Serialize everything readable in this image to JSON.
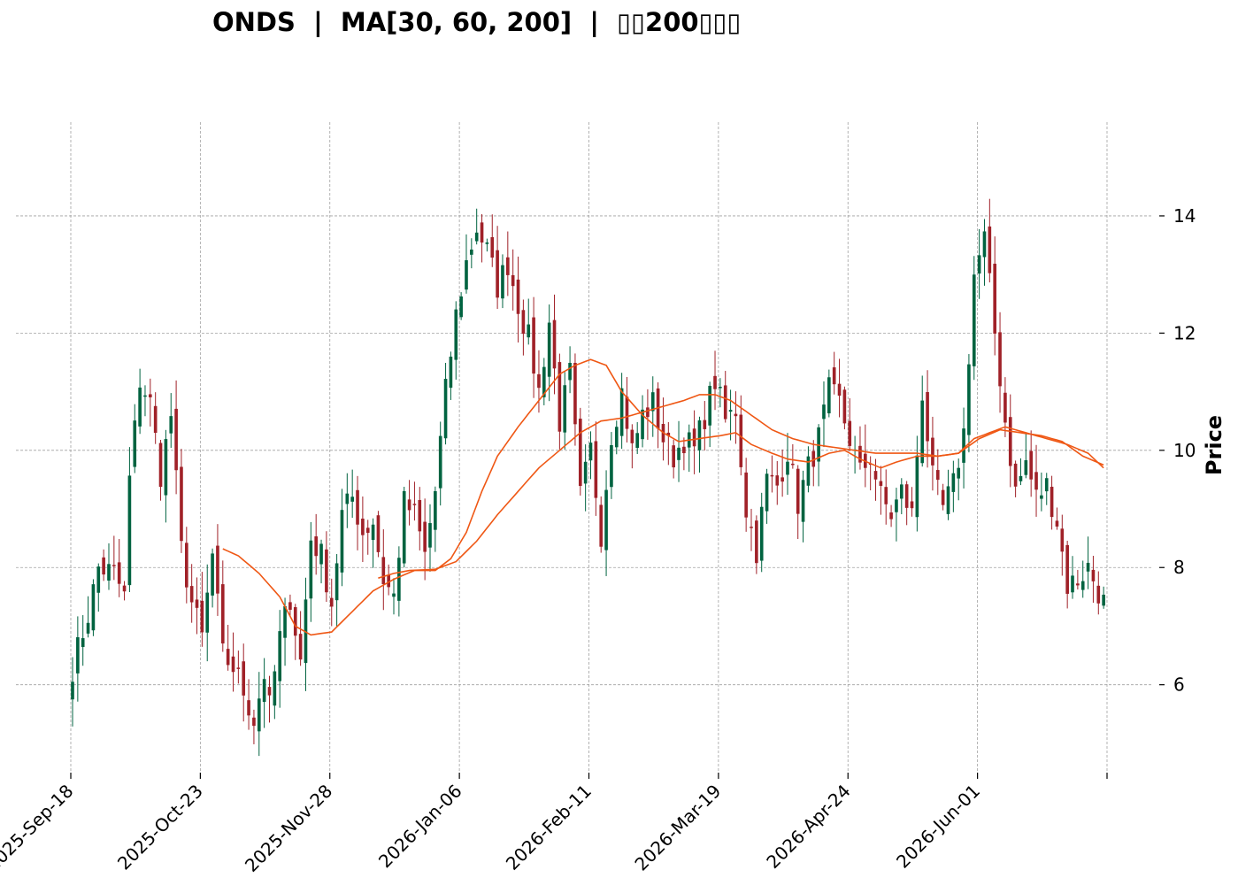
{
  "chart_data": {
    "type": "candlestick",
    "title": "ONDS  |  MA[30, 60, 200]  |  ▯▯200▯▯▯",
    "ylabel": "Price",
    "xlabel": "",
    "ylim": [
      4.5,
      15.6
    ],
    "yticks": [
      6,
      8,
      10,
      12,
      14
    ],
    "x_ticks": [
      {
        "label": "2025-Sep-18",
        "index": 0
      },
      {
        "label": "2025-Oct-23",
        "index": 25
      },
      {
        "label": "2025-Nov-28",
        "index": 50
      },
      {
        "label": "2026-Jan-06",
        "index": 75
      },
      {
        "label": "2026-Feb-11",
        "index": 100
      },
      {
        "label": "2026-Mar-19",
        "index": 125
      },
      {
        "label": "2026-Apr-24",
        "index": 150
      },
      {
        "label": "2026-Jun-01",
        "index": 175
      },
      {
        "label": "",
        "index": 200
      }
    ],
    "num_bars": 200,
    "grid": true,
    "colors": {
      "up": "#006340",
      "down": "#a02128",
      "ma": "#ef5714",
      "grid": "#a0a0a0"
    },
    "close_anchors": [
      [
        0,
        6.3
      ],
      [
        3,
        7.2
      ],
      [
        5,
        8.0
      ],
      [
        8,
        7.9
      ],
      [
        10,
        7.5
      ],
      [
        11,
        9.5
      ],
      [
        13,
        11.2
      ],
      [
        15,
        10.8
      ],
      [
        17,
        9.6
      ],
      [
        19,
        10.6
      ],
      [
        21,
        8.3
      ],
      [
        23,
        7.4
      ],
      [
        25,
        6.8
      ],
      [
        27,
        8.2
      ],
      [
        29,
        6.5
      ],
      [
        31,
        6.3
      ],
      [
        33,
        5.9
      ],
      [
        35,
        5.4
      ],
      [
        37,
        6.2
      ],
      [
        38,
        5.6
      ],
      [
        40,
        6.8
      ],
      [
        42,
        7.5
      ],
      [
        44,
        6.4
      ],
      [
        46,
        8.5
      ],
      [
        48,
        8.2
      ],
      [
        50,
        7.4
      ],
      [
        52,
        8.9
      ],
      [
        54,
        9.2
      ],
      [
        56,
        8.6
      ],
      [
        58,
        8.8
      ],
      [
        60,
        7.8
      ],
      [
        62,
        7.5
      ],
      [
        64,
        9.1
      ],
      [
        66,
        8.9
      ],
      [
        68,
        8.2
      ],
      [
        70,
        9.3
      ],
      [
        72,
        11.0
      ],
      [
        74,
        12.3
      ],
      [
        76,
        13.2
      ],
      [
        78,
        13.8
      ],
      [
        80,
        13.4
      ],
      [
        82,
        12.8
      ],
      [
        84,
        13.2
      ],
      [
        86,
        12.5
      ],
      [
        88,
        11.9
      ],
      [
        90,
        11.0
      ],
      [
        92,
        12.2
      ],
      [
        94,
        10.5
      ],
      [
        96,
        11.3
      ],
      [
        98,
        9.2
      ],
      [
        100,
        10.0
      ],
      [
        102,
        8.6
      ],
      [
        104,
        10.3
      ],
      [
        106,
        11.0
      ],
      [
        108,
        10.0
      ],
      [
        110,
        10.6
      ],
      [
        112,
        10.8
      ],
      [
        114,
        10.2
      ],
      [
        116,
        9.9
      ],
      [
        118,
        10.2
      ],
      [
        120,
        10.0
      ],
      [
        122,
        10.6
      ],
      [
        124,
        11.2
      ],
      [
        126,
        10.5
      ],
      [
        128,
        10.7
      ],
      [
        130,
        9.0
      ],
      [
        132,
        8.3
      ],
      [
        134,
        9.5
      ],
      [
        136,
        9.4
      ],
      [
        138,
        10.0
      ],
      [
        140,
        9.1
      ],
      [
        142,
        9.7
      ],
      [
        144,
        10.2
      ],
      [
        146,
        11.0
      ],
      [
        148,
        10.8
      ],
      [
        150,
        10.2
      ],
      [
        152,
        9.6
      ],
      [
        154,
        9.9
      ],
      [
        156,
        9.2
      ],
      [
        158,
        8.9
      ],
      [
        160,
        9.3
      ],
      [
        162,
        8.9
      ],
      [
        164,
        11.0
      ],
      [
        166,
        9.5
      ],
      [
        168,
        9.0
      ],
      [
        170,
        9.4
      ],
      [
        172,
        10.3
      ],
      [
        174,
        13.0
      ],
      [
        176,
        13.6
      ],
      [
        178,
        12.0
      ],
      [
        180,
        10.5
      ],
      [
        182,
        9.3
      ],
      [
        184,
        9.8
      ],
      [
        186,
        9.2
      ],
      [
        188,
        9.4
      ],
      [
        190,
        8.8
      ],
      [
        192,
        7.7
      ],
      [
        194,
        7.8
      ],
      [
        196,
        8.0
      ],
      [
        198,
        7.6
      ],
      [
        199,
        7.4
      ]
    ],
    "series": [
      {
        "name": "MA30",
        "start_index": 29,
        "points": [
          [
            29,
            8.32
          ],
          [
            32,
            8.2
          ],
          [
            36,
            7.9
          ],
          [
            40,
            7.5
          ],
          [
            43,
            7.0
          ],
          [
            46,
            6.85
          ],
          [
            50,
            6.9
          ],
          [
            54,
            7.25
          ],
          [
            58,
            7.6
          ],
          [
            62,
            7.8
          ],
          [
            66,
            7.95
          ],
          [
            70,
            7.95
          ],
          [
            73,
            8.15
          ],
          [
            76,
            8.6
          ],
          [
            79,
            9.3
          ],
          [
            82,
            9.9
          ],
          [
            86,
            10.4
          ],
          [
            90,
            10.85
          ],
          [
            94,
            11.3
          ],
          [
            97,
            11.45
          ],
          [
            100,
            11.55
          ],
          [
            103,
            11.45
          ],
          [
            106,
            11.0
          ],
          [
            110,
            10.6
          ],
          [
            114,
            10.3
          ],
          [
            117,
            10.15
          ],
          [
            121,
            10.2
          ],
          [
            125,
            10.25
          ],
          [
            128,
            10.3
          ],
          [
            131,
            10.1
          ],
          [
            135,
            9.95
          ],
          [
            138,
            9.85
          ],
          [
            142,
            9.8
          ],
          [
            146,
            9.95
          ],
          [
            149,
            10.0
          ],
          [
            152,
            9.85
          ],
          [
            156,
            9.7
          ],
          [
            159,
            9.8
          ],
          [
            163,
            9.9
          ],
          [
            167,
            9.9
          ],
          [
            171,
            9.95
          ],
          [
            174,
            10.2
          ],
          [
            177,
            10.3
          ],
          [
            180,
            10.4
          ],
          [
            184,
            10.3
          ],
          [
            188,
            10.2
          ],
          [
            192,
            10.1
          ],
          [
            196,
            9.95
          ],
          [
            199,
            9.7
          ]
        ]
      },
      {
        "name": "MA60",
        "start_index": 59,
        "points": [
          [
            59,
            7.82
          ],
          [
            62,
            7.9
          ],
          [
            65,
            7.95
          ],
          [
            70,
            7.97
          ],
          [
            74,
            8.1
          ],
          [
            78,
            8.45
          ],
          [
            82,
            8.9
          ],
          [
            86,
            9.3
          ],
          [
            90,
            9.7
          ],
          [
            94,
            10.0
          ],
          [
            98,
            10.3
          ],
          [
            102,
            10.5
          ],
          [
            106,
            10.55
          ],
          [
            110,
            10.65
          ],
          [
            114,
            10.75
          ],
          [
            118,
            10.85
          ],
          [
            121,
            10.95
          ],
          [
            124,
            10.95
          ],
          [
            127,
            10.85
          ],
          [
            131,
            10.6
          ],
          [
            135,
            10.35
          ],
          [
            139,
            10.2
          ],
          [
            143,
            10.1
          ],
          [
            147,
            10.05
          ],
          [
            151,
            10.0
          ],
          [
            155,
            9.95
          ],
          [
            159,
            9.95
          ],
          [
            163,
            9.95
          ],
          [
            167,
            9.9
          ],
          [
            171,
            9.95
          ],
          [
            175,
            10.2
          ],
          [
            179,
            10.35
          ],
          [
            183,
            10.3
          ],
          [
            187,
            10.25
          ],
          [
            191,
            10.15
          ],
          [
            195,
            9.9
          ],
          [
            199,
            9.75
          ]
        ]
      }
    ]
  }
}
